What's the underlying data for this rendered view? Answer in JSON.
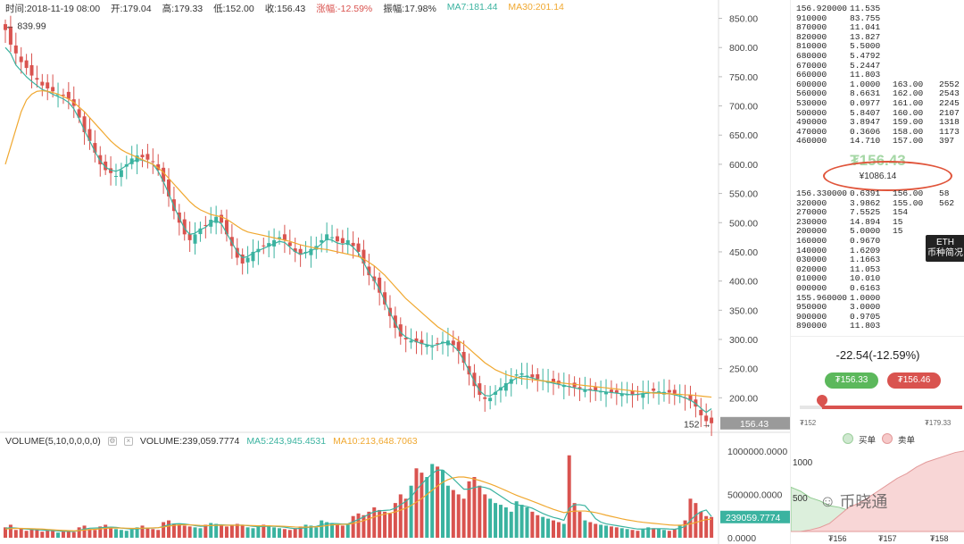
{
  "info": {
    "time": "时间:2018-11-19 08:00",
    "open": "开:179.04",
    "high": "高:179.33",
    "low": "低:152.00",
    "close": "收:156.43",
    "change": "涨幅:-12.59%",
    "amplitude": "振幅:17.98%",
    "ma7": "MA7:181.44",
    "ma30": "MA30:201.14"
  },
  "volume_info": {
    "label": "VOLUME(5,10,0,0,0,0)",
    "volume": "VOLUME:239,059.7774",
    "ma5": "MA5:243,945.4531",
    "ma10": "MA10:213,648.7063"
  },
  "colors": {
    "up": "#3bb3a0",
    "down": "#d9534f",
    "ma_short": "#3bb3a0",
    "ma_long": "#f0a830",
    "last_price_tag": "#9a9a9a"
  },
  "chart_data": [
    {
      "type": "candlestick",
      "title": "",
      "price_axis_ticks": [
        "850.00",
        "800.00",
        "750.00",
        "700.00",
        "650.00",
        "600.00",
        "550.00",
        "500.00",
        "450.00",
        "400.00",
        "350.00",
        "300.00",
        "250.00",
        "200.00"
      ],
      "ylim": [
        150,
        860
      ],
      "annotations": {
        "high_marker": "← 839.99",
        "low_marker": "152 →",
        "last_price": "156.43"
      },
      "close_series": [
        830,
        805,
        790,
        775,
        765,
        752,
        745,
        735,
        730,
        725,
        720,
        718,
        712,
        700,
        680,
        655,
        640,
        620,
        600,
        590,
        585,
        580,
        590,
        600,
        610,
        615,
        612,
        608,
        605,
        590,
        570,
        545,
        520,
        500,
        480,
        470,
        480,
        490,
        495,
        505,
        510,
        500,
        480,
        460,
        440,
        430,
        440,
        450,
        455,
        460,
        465,
        470,
        475,
        470,
        460,
        450,
        445,
        450,
        455,
        460,
        470,
        480,
        475,
        468,
        465,
        470,
        460,
        450,
        430,
        410,
        400,
        380,
        360,
        340,
        320,
        305,
        300,
        298,
        295,
        292,
        290,
        288,
        292,
        296,
        298,
        290,
        280,
        260,
        240,
        220,
        205,
        198,
        200,
        210,
        218,
        225,
        232,
        240,
        242,
        238,
        235,
        232,
        230,
        228,
        226,
        224,
        222,
        220,
        218,
        216,
        214,
        213,
        212,
        211,
        210,
        209,
        208,
        207,
        206,
        205,
        206,
        208,
        210,
        212,
        211,
        210,
        209,
        207,
        204,
        200,
        195,
        185,
        170,
        160,
        156.43
      ],
      "ma7_series": [
        800,
        790,
        770,
        760,
        750,
        742,
        735,
        728,
        725,
        720,
        716,
        712,
        706,
        695,
        678,
        658,
        640,
        622,
        606,
        595,
        590,
        588,
        592,
        598,
        604,
        608,
        607,
        604,
        600,
        588,
        570,
        550,
        528,
        508,
        490,
        480,
        482,
        488,
        492,
        500,
        504,
        498,
        482,
        466,
        450,
        440,
        442,
        448,
        452,
        456,
        460,
        464,
        468,
        466,
        458,
        450,
        446,
        448,
        452,
        456,
        464,
        472,
        470,
        465,
        463,
        465,
        458,
        448,
        432,
        414,
        402,
        386,
        366,
        346,
        328,
        312,
        304,
        300,
        296,
        293,
        291,
        289,
        291,
        294,
        295,
        289,
        280,
        264,
        246,
        228,
        212,
        204,
        203,
        209,
        216,
        222,
        228,
        234,
        237,
        236,
        234,
        231,
        229,
        227,
        225,
        223,
        221,
        219,
        217,
        215,
        214,
        213,
        212,
        211,
        210,
        209,
        208,
        207,
        206,
        205,
        206,
        207,
        208,
        209,
        209,
        208,
        207,
        205,
        203,
        200,
        196,
        190,
        182,
        175,
        181.44
      ],
      "ma30_series": [
        600,
        630,
        660,
        690,
        710,
        720,
        725,
        726,
        725,
        723,
        720,
        716,
        712,
        706,
        698,
        690,
        680,
        670,
        660,
        650,
        640,
        632,
        625,
        620,
        616,
        612,
        608,
        604,
        600,
        594,
        586,
        576,
        566,
        556,
        546,
        536,
        528,
        522,
        518,
        514,
        512,
        510,
        506,
        500,
        494,
        488,
        484,
        482,
        480,
        478,
        476,
        474,
        472,
        470,
        468,
        465,
        462,
        460,
        458,
        456,
        455,
        454,
        452,
        450,
        448,
        446,
        444,
        442,
        438,
        432,
        426,
        418,
        410,
        400,
        390,
        380,
        370,
        362,
        354,
        346,
        338,
        330,
        322,
        316,
        310,
        304,
        298,
        292,
        284,
        276,
        268,
        260,
        254,
        248,
        244,
        240,
        237,
        235,
        233,
        232,
        231,
        230,
        229,
        228,
        227,
        226,
        225,
        224,
        223,
        222,
        221,
        220,
        219,
        218,
        217,
        216,
        215,
        214,
        213,
        212,
        211,
        210,
        209,
        208,
        208,
        207,
        207,
        206,
        206,
        205,
        205,
        204,
        203,
        202,
        201.14
      ]
    },
    {
      "type": "bar",
      "title": "",
      "volume_axis_ticks": [
        "1000000.0000",
        "500000.0000",
        "0.0000"
      ],
      "ylim": [
        0,
        1050000
      ],
      "annotations": {
        "last_volume": "239059.7774"
      },
      "values": [
        120000,
        150000,
        90000,
        110000,
        80000,
        100000,
        95000,
        70000,
        85000,
        90000,
        60000,
        75000,
        80000,
        65000,
        120000,
        140000,
        100000,
        90000,
        130000,
        150000,
        110000,
        100000,
        90000,
        80000,
        95000,
        120000,
        140000,
        110000,
        100000,
        90000,
        180000,
        200000,
        160000,
        150000,
        140000,
        130000,
        120000,
        110000,
        150000,
        170000,
        160000,
        140000,
        130000,
        150000,
        160000,
        140000,
        120000,
        110000,
        130000,
        150000,
        140000,
        120000,
        110000,
        100000,
        90000,
        110000,
        130000,
        150000,
        140000,
        120000,
        200000,
        180000,
        160000,
        150000,
        140000,
        160000,
        250000,
        280000,
        260000,
        300000,
        350000,
        320000,
        300000,
        280000,
        400000,
        500000,
        450000,
        600000,
        800000,
        750000,
        700000,
        850000,
        820000,
        780000,
        600000,
        550000,
        500000,
        450000,
        650000,
        700000,
        600000,
        500000,
        450000,
        400000,
        380000,
        350000,
        300000,
        420000,
        380000,
        350000,
        300000,
        260000,
        240000,
        220000,
        200000,
        180000,
        160000,
        950000,
        400000,
        300000,
        200000,
        180000,
        160000,
        150000,
        140000,
        130000,
        120000,
        110000,
        100000,
        90000,
        80000,
        100000,
        120000,
        110000,
        100000,
        90000,
        80000,
        100000,
        150000,
        200000,
        450000,
        400000,
        300000,
        250000,
        239059.7774
      ],
      "ma5_series": [
        110000,
        115000,
        112000,
        105000,
        100000,
        95000,
        92000,
        88000,
        85000,
        82000,
        78000,
        75000,
        74000,
        72000,
        85000,
        100000,
        110000,
        112000,
        115000,
        120000,
        122000,
        120000,
        112000,
        105000,
        100000,
        102000,
        108000,
        110000,
        112000,
        115000,
        130000,
        150000,
        160000,
        162000,
        158000,
        150000,
        140000,
        132000,
        135000,
        142000,
        148000,
        150000,
        146000,
        144000,
        145000,
        146000,
        140000,
        132000,
        128000,
        130000,
        134000,
        132000,
        128000,
        122000,
        112000,
        105000,
        108000,
        115000,
        125000,
        130000,
        150000,
        160000,
        165000,
        162000,
        158000,
        160000,
        185000,
        210000,
        240000,
        270000,
        300000,
        310000,
        315000,
        320000,
        340000,
        380000,
        420000,
        470000,
        550000,
        620000,
        680000,
        740000,
        780000,
        780000,
        730000,
        680000,
        620000,
        560000,
        560000,
        580000,
        590000,
        580000,
        560000,
        520000,
        480000,
        440000,
        400000,
        380000,
        370000,
        360000,
        340000,
        310000,
        280000,
        255000,
        235000,
        220000,
        200000,
        340000,
        380000,
        380000,
        370000,
        300000,
        220000,
        180000,
        160000,
        150000,
        140000,
        130000,
        120000,
        110000,
        100000,
        100000,
        102000,
        104000,
        105000,
        104000,
        100000,
        98000,
        110000,
        130000,
        200000,
        260000,
        300000,
        320000,
        243945.4531
      ],
      "ma10_series": [
        100000,
        105000,
        108000,
        108000,
        106000,
        104000,
        102000,
        100000,
        96000,
        92000,
        88000,
        85000,
        82000,
        80000,
        82000,
        88000,
        94000,
        98000,
        102000,
        108000,
        112000,
        112000,
        112000,
        110000,
        108000,
        108000,
        110000,
        112000,
        114000,
        116000,
        124000,
        134000,
        142000,
        148000,
        150000,
        148000,
        146000,
        142000,
        140000,
        140000,
        142000,
        144000,
        144000,
        144000,
        144000,
        144000,
        142000,
        140000,
        138000,
        138000,
        138000,
        136000,
        134000,
        132000,
        128000,
        124000,
        122000,
        122000,
        124000,
        126000,
        132000,
        140000,
        148000,
        152000,
        154000,
        156000,
        166000,
        180000,
        198000,
        218000,
        240000,
        258000,
        272000,
        284000,
        298000,
        318000,
        342000,
        372000,
        410000,
        452000,
        498000,
        548000,
        596000,
        640000,
        670000,
        690000,
        700000,
        700000,
        690000,
        676000,
        660000,
        640000,
        620000,
        596000,
        570000,
        544000,
        516000,
        490000,
        466000,
        444000,
        422000,
        398000,
        374000,
        350000,
        328000,
        308000,
        290000,
        300000,
        306000,
        308000,
        308000,
        300000,
        290000,
        276000,
        260000,
        246000,
        232000,
        218000,
        206000,
        196000,
        186000,
        178000,
        172000,
        166000,
        160000,
        154000,
        148000,
        144000,
        144000,
        148000,
        160000,
        176000,
        194000,
        210000,
        213648.7063
      ]
    },
    {
      "type": "area",
      "title": "",
      "series": [
        {
          "name": "买单",
          "values": [
            0.55,
            0.5,
            0.42,
            0.38,
            0.32,
            0.3,
            0.26,
            0.24,
            0.2,
            0.18,
            0.15,
            0.12,
            0.1,
            0.08,
            0.06,
            0.04,
            0.02,
            0.0,
            0.0
          ]
        },
        {
          "name": "卖单",
          "values": [
            0.0,
            0.0,
            0.02,
            0.05,
            0.1,
            0.2,
            0.3,
            0.35,
            0.42,
            0.5,
            0.58,
            0.66,
            0.72,
            0.8,
            0.86,
            0.9,
            0.94,
            0.98,
            1.0
          ]
        }
      ],
      "y_ticks": [
        "1000",
        "500"
      ],
      "x_ticks": [
        "₮156",
        "₮157",
        "₮158"
      ]
    }
  ],
  "orderbook": {
    "asks": [
      {
        "p": "156.920000",
        "a": "11.535",
        "p2": "",
        "v2": ""
      },
      {
        "p": "910000",
        "a": "83.755",
        "p2": "",
        "v2": ""
      },
      {
        "p": "870000",
        "a": "11.041",
        "p2": "",
        "v2": ""
      },
      {
        "p": "820000",
        "a": "13.827",
        "p2": "",
        "v2": ""
      },
      {
        "p": "810000",
        "a": "5.5000",
        "p2": "",
        "v2": ""
      },
      {
        "p": "680000",
        "a": "5.4792",
        "p2": "",
        "v2": ""
      },
      {
        "p": "670000",
        "a": "5.2447",
        "p2": "",
        "v2": ""
      },
      {
        "p": "660000",
        "a": "11.803",
        "p2": "",
        "v2": ""
      },
      {
        "p": "600000",
        "a": "1.0000",
        "p2": "163.00",
        "v2": "2552"
      },
      {
        "p": "560000",
        "a": "8.6631",
        "p2": "162.00",
        "v2": "2543"
      },
      {
        "p": "530000",
        "a": "0.0977",
        "p2": "161.00",
        "v2": "2245"
      },
      {
        "p": "500000",
        "a": "5.8407",
        "p2": "160.00",
        "v2": "2107"
      },
      {
        "p": "490000",
        "a": "3.8947",
        "p2": "159.00",
        "v2": "1318"
      },
      {
        "p": "470000",
        "a": "0.3606",
        "p2": "158.00",
        "v2": "1173"
      },
      {
        "p": "460000",
        "a": "14.710",
        "p2": "157.00",
        "v2": "397"
      }
    ],
    "last_price": "₮156.43",
    "cny_price": "¥1086.14",
    "bids": [
      {
        "p": "156.330000",
        "a": "0.6391",
        "p2": "156.00",
        "v2": "58"
      },
      {
        "p": "320000",
        "a": "3.9862",
        "p2": "155.00",
        "v2": "562"
      },
      {
        "p": "270000",
        "a": "7.5525",
        "p2": "154",
        "v2": ""
      },
      {
        "p": "230000",
        "a": "14.894",
        "p2": "15",
        "v2": ""
      },
      {
        "p": "200000",
        "a": "5.0000",
        "p2": "15",
        "v2": ""
      },
      {
        "p": "160000",
        "a": "0.9670",
        "p2": "",
        "v2": ""
      },
      {
        "p": "140000",
        "a": "1.6209",
        "p2": "",
        "v2": ""
      },
      {
        "p": "030000",
        "a": "1.1663",
        "p2": "",
        "v2": ""
      },
      {
        "p": "020000",
        "a": "11.053",
        "p2": "",
        "v2": ""
      },
      {
        "p": "010000",
        "a": "10.010",
        "p2": "",
        "v2": ""
      },
      {
        "p": "000000",
        "a": "0.6163",
        "p2": "",
        "v2": ""
      },
      {
        "p": "155.960000",
        "a": "1.0000",
        "p2": "",
        "v2": ""
      },
      {
        "p": "950000",
        "a": "3.0000",
        "p2": "",
        "v2": ""
      },
      {
        "p": "900000",
        "a": "0.9705",
        "p2": "",
        "v2": ""
      },
      {
        "p": "890000",
        "a": "11.803",
        "p2": "",
        "v2": ""
      }
    ]
  },
  "badge": {
    "line1": "ETH",
    "line2": "币种简况"
  },
  "summary": {
    "change": "-22.54(-12.59%)",
    "bid": "₮156.33",
    "ask": "₮156.46",
    "range_low": "₮152",
    "range_high": "₮179.33",
    "range_position": 0.14
  },
  "depth": {
    "legend_bid": "买单",
    "legend_ask": "卖单"
  },
  "watermark": {
    "icon": "wechat-icon",
    "text": "币晓通"
  }
}
